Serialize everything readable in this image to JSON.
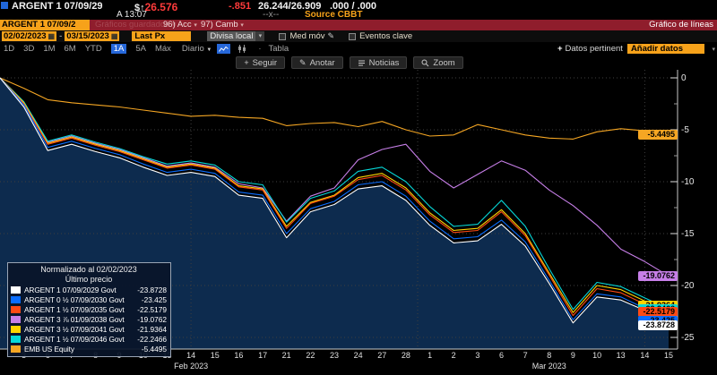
{
  "quote": {
    "ticker": "ARGENT 1 07/09/29",
    "currency_symbol": "$",
    "arrow": "↑",
    "last": "26.576",
    "change": "-.851",
    "bid_ask": "26.244/26.909",
    "second_pair": ".000 / .000",
    "session": "A 13:07",
    "market_x": "--x--",
    "source": "Source CBBT"
  },
  "titlebar": {
    "ticker_chip": "ARGENT 1 07/09/2",
    "saved_charts": "Gráficos guardados ▾",
    "actions": "96) Acc",
    "edit": "97) Camb",
    "chart_title": "Gráfico de líneas"
  },
  "toolbar1": {
    "date_from": "02/02/2023",
    "range_dash": "-",
    "date_to": "03/15/2023",
    "price_field": "Last Px",
    "currency": "Divisa local",
    "mov_avg": "Med móv",
    "key_events": "Eventos clave"
  },
  "toolbar2": {
    "periods": [
      "1D",
      "3D",
      "1M",
      "6M",
      "YTD",
      "1A",
      "5A",
      "Máx"
    ],
    "selected_period": "1A",
    "frequency": "Diario",
    "table": "Tabla",
    "relevant_data": "Datos pertinent",
    "add_data": "Añadir datos"
  },
  "icons": {
    "calendar": "▦",
    "caret_down": "▾",
    "freq_caret": "▼",
    "dot": "·",
    "plus": "+",
    "pencil": "✎",
    "collapse": "▾"
  },
  "chart_buttons": [
    {
      "icon": "plus",
      "label": "Seguir"
    },
    {
      "icon": "pencil",
      "label": "Anotar"
    },
    {
      "icon": "news",
      "label": "Noticias"
    },
    {
      "icon": "magnifier",
      "label": "Zoom"
    }
  ],
  "legend": {
    "title_line1": "Normalizado al 02/02/2023",
    "title_line2": "Último precio",
    "items": [
      {
        "label": "ARGENT 1 07/09/2029 Govt",
        "value": "-23.8728",
        "color": "#ffffff"
      },
      {
        "label": "ARGENT 0 ½ 07/09/2030 Govt",
        "value": "-23.425",
        "color": "#0a6dff"
      },
      {
        "label": "ARGENT 1 ½ 07/09/2035 Govt",
        "value": "-22.5179",
        "color": "#ff4a14"
      },
      {
        "label": "ARGENT 3 ⅞ 01/09/2038 Govt",
        "value": "-19.0762",
        "color": "#c77fe8"
      },
      {
        "label": "ARGENT 3 ½ 07/09/2041 Govt",
        "value": "-21.9364",
        "color": "#ffd400"
      },
      {
        "label": "ARGENT 1 ½ 07/09/2046 Govt",
        "value": "-22.2466",
        "color": "#06d8d8"
      },
      {
        "label": "EMB US Equity",
        "value": "-5.4495",
        "color": "#f5a623"
      }
    ]
  },
  "badges": [
    {
      "text": "-5.4495",
      "color": "#f5a623"
    },
    {
      "text": "-19.0762",
      "color": "#c77fe8"
    },
    {
      "text": "-21.9364",
      "color": "#ffd400"
    },
    {
      "text": "-22.2466",
      "color": "#06d8d8"
    },
    {
      "text": "-22.5179",
      "color": "#ff4a14"
    },
    {
      "text": "-23.425",
      "color": "#0a6dff"
    },
    {
      "text": "-23.8728",
      "color": "#ffffff"
    }
  ],
  "chart_data": {
    "type": "line",
    "title": "Normalizado al 02/02/2023",
    "subtitle": "Último precio",
    "ylabel": "",
    "xlabel": "",
    "ylim": [
      -25,
      0
    ],
    "y_ticks": [
      0,
      -5,
      -10,
      -15,
      -20,
      -25
    ],
    "grid": true,
    "fill_color": "#0d2b4e",
    "x_dates": [
      "Feb 2",
      "Feb 3",
      "Feb 6",
      "Feb 7",
      "Feb 8",
      "Feb 9",
      "Feb 10",
      "Feb 13",
      "Feb 14",
      "Feb 15",
      "Feb 16",
      "Feb 17",
      "Feb 21",
      "Feb 22",
      "Feb 23",
      "Feb 24",
      "Feb 27",
      "Feb 28",
      "Mar 1",
      "Mar 2",
      "Mar 3",
      "Mar 6",
      "Mar 7",
      "Mar 8",
      "Mar 9",
      "Mar 10",
      "Mar 13",
      "Mar 14",
      "Mar 15"
    ],
    "x_tick_labels": [
      "",
      "3",
      "6",
      "7",
      "8",
      "9",
      "10",
      "13",
      "14",
      "15",
      "16",
      "17",
      "21",
      "22",
      "23",
      "24",
      "27",
      "28",
      "1",
      "2",
      "3",
      "6",
      "7",
      "8",
      "9",
      "10",
      "13",
      "14",
      "15"
    ],
    "month_labels": [
      {
        "text": "Feb 2023",
        "index": 8
      },
      {
        "text": "Mar 2023",
        "index": 23
      }
    ],
    "series": [
      {
        "name": "ARGENT 1 07/09/2029 Govt",
        "color": "#ffffff",
        "fill_below": true,
        "values": [
          0,
          -2.8,
          -7.0,
          -6.4,
          -7.1,
          -7.7,
          -8.6,
          -9.4,
          -9.1,
          -9.5,
          -11.3,
          -11.6,
          -15.4,
          -12.9,
          -12.2,
          -10.7,
          -10.4,
          -11.8,
          -14.2,
          -15.9,
          -15.7,
          -14.1,
          -16.2,
          -19.8,
          -23.6,
          -21.1,
          -21.4,
          -22.4,
          -23.8728
        ]
      },
      {
        "name": "ARGENT 0 ½ 07/09/2030 Govt",
        "color": "#0a6dff",
        "values": [
          0,
          -2.6,
          -6.7,
          -6.1,
          -6.8,
          -7.4,
          -8.3,
          -9.1,
          -8.8,
          -9.2,
          -11.0,
          -11.3,
          -15.0,
          -12.6,
          -11.9,
          -10.3,
          -10.0,
          -11.4,
          -13.8,
          -15.5,
          -15.3,
          -13.7,
          -15.8,
          -19.5,
          -23.3,
          -20.8,
          -21.1,
          -22.2,
          -23.425
        ]
      },
      {
        "name": "ARGENT 1 ½ 07/09/2035 Govt",
        "color": "#ff4a14",
        "values": [
          0,
          -2.5,
          -6.4,
          -5.8,
          -6.5,
          -7.1,
          -7.9,
          -8.7,
          -8.4,
          -8.8,
          -10.5,
          -10.8,
          -14.5,
          -12.1,
          -11.4,
          -9.8,
          -9.4,
          -10.8,
          -13.2,
          -14.9,
          -14.7,
          -12.9,
          -15.2,
          -19.0,
          -22.9,
          -20.3,
          -20.7,
          -21.8,
          -22.5179
        ]
      },
      {
        "name": "ARGENT 3 ⅞ 01/09/2038 Govt",
        "color": "#c77fe8",
        "values": [
          0,
          -2.4,
          -6.2,
          -5.6,
          -6.3,
          -6.9,
          -7.7,
          -8.5,
          -8.2,
          -8.6,
          -10.2,
          -10.6,
          -13.8,
          -11.4,
          -10.6,
          -7.9,
          -6.9,
          -6.4,
          -9.0,
          -10.6,
          -9.3,
          -8.0,
          -8.9,
          -10.8,
          -12.3,
          -14.2,
          -16.5,
          -17.7,
          -19.0762
        ]
      },
      {
        "name": "ARGENT 3 ½ 07/09/2041 Govt",
        "color": "#ffd400",
        "values": [
          0,
          -2.4,
          -6.3,
          -5.7,
          -6.4,
          -7.0,
          -7.8,
          -8.6,
          -8.3,
          -8.7,
          -10.4,
          -10.7,
          -14.3,
          -12.0,
          -11.3,
          -9.6,
          -9.2,
          -10.6,
          -13.0,
          -14.7,
          -14.5,
          -12.7,
          -15.0,
          -18.8,
          -22.6,
          -20.0,
          -20.4,
          -21.5,
          -21.9364
        ]
      },
      {
        "name": "ARGENT 1 ½ 07/09/2046 Govt",
        "color": "#06d8d8",
        "values": [
          0,
          -2.3,
          -6.1,
          -5.5,
          -6.2,
          -6.8,
          -7.6,
          -8.3,
          -8.0,
          -8.4,
          -10.0,
          -10.3,
          -13.9,
          -11.6,
          -10.9,
          -9.0,
          -8.6,
          -10.0,
          -12.4,
          -14.3,
          -14.1,
          -11.8,
          -14.3,
          -18.4,
          -22.3,
          -19.7,
          -20.1,
          -21.2,
          -22.2466
        ]
      },
      {
        "name": "EMB US Equity",
        "color": "#f5a623",
        "values": [
          0,
          -1.0,
          -2.1,
          -2.4,
          -2.6,
          -2.8,
          -3.1,
          -3.4,
          -3.7,
          -3.6,
          -3.8,
          -3.9,
          -4.6,
          -4.4,
          -4.3,
          -4.7,
          -4.2,
          -5.0,
          -5.6,
          -5.5,
          -4.5,
          -5.0,
          -5.5,
          -5.8,
          -5.9,
          -5.2,
          -4.9,
          -5.1,
          -5.4495
        ]
      }
    ],
    "legend_position": "lower-left"
  }
}
